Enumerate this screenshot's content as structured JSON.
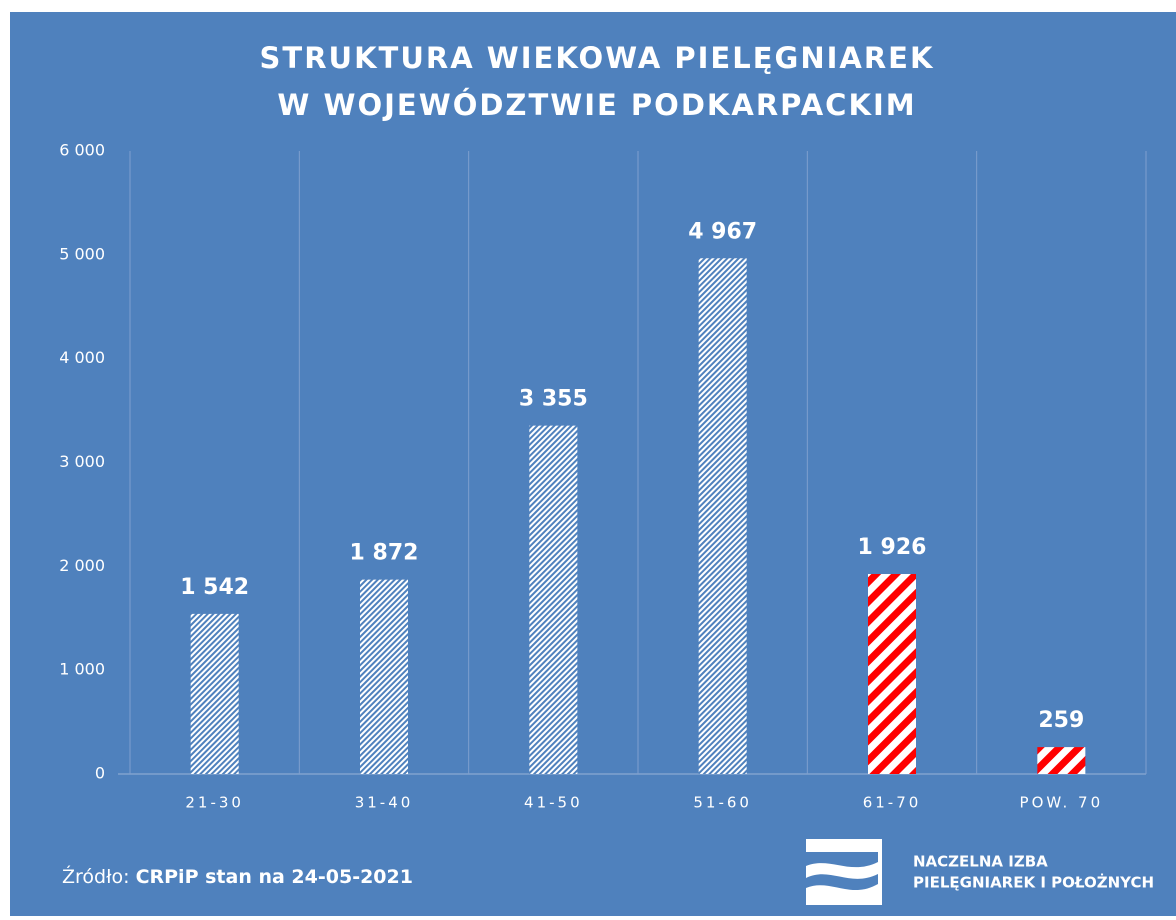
{
  "chart_data": {
    "type": "bar",
    "title": [
      "STRUKTURA WIEKOWA PIELĘGNIAREK",
      "W WOJEWÓDZTWIE PODKARPACKIM"
    ],
    "categories": [
      "21-30",
      "31-40",
      "41-50",
      "51-60",
      "61-70",
      "POW. 70"
    ],
    "values": [
      1542,
      1872,
      3355,
      4967,
      1926,
      259
    ],
    "value_labels": [
      "1 542",
      "1 872",
      "3 355",
      "4 967",
      "1 926",
      "259"
    ],
    "colors": [
      "#4f81bd",
      "#4f81bd",
      "#4f81bd",
      "#4f81bd",
      "#ff0000",
      "#ff0000"
    ],
    "ylim": [
      0,
      6000
    ],
    "yticks": [
      0,
      {
        "value": 1000,
        "label": "1 000"
      },
      {
        "value": 2000,
        "label": "2 000"
      },
      {
        "value": 3000,
        "label": "3 000"
      },
      {
        "value": 4000,
        "label": "4 000"
      },
      {
        "value": 5000,
        "label": "5 000"
      },
      {
        "value": 6000,
        "label": "6 000"
      }
    ],
    "grid": true
  },
  "footer": {
    "source_label": "Źródło: ",
    "source": "CRPiP stan na 24-05-2021",
    "logo": [
      "NACZELNA IZBA",
      "PIELĘGNIAREK I POŁOŻNYCH"
    ]
  }
}
